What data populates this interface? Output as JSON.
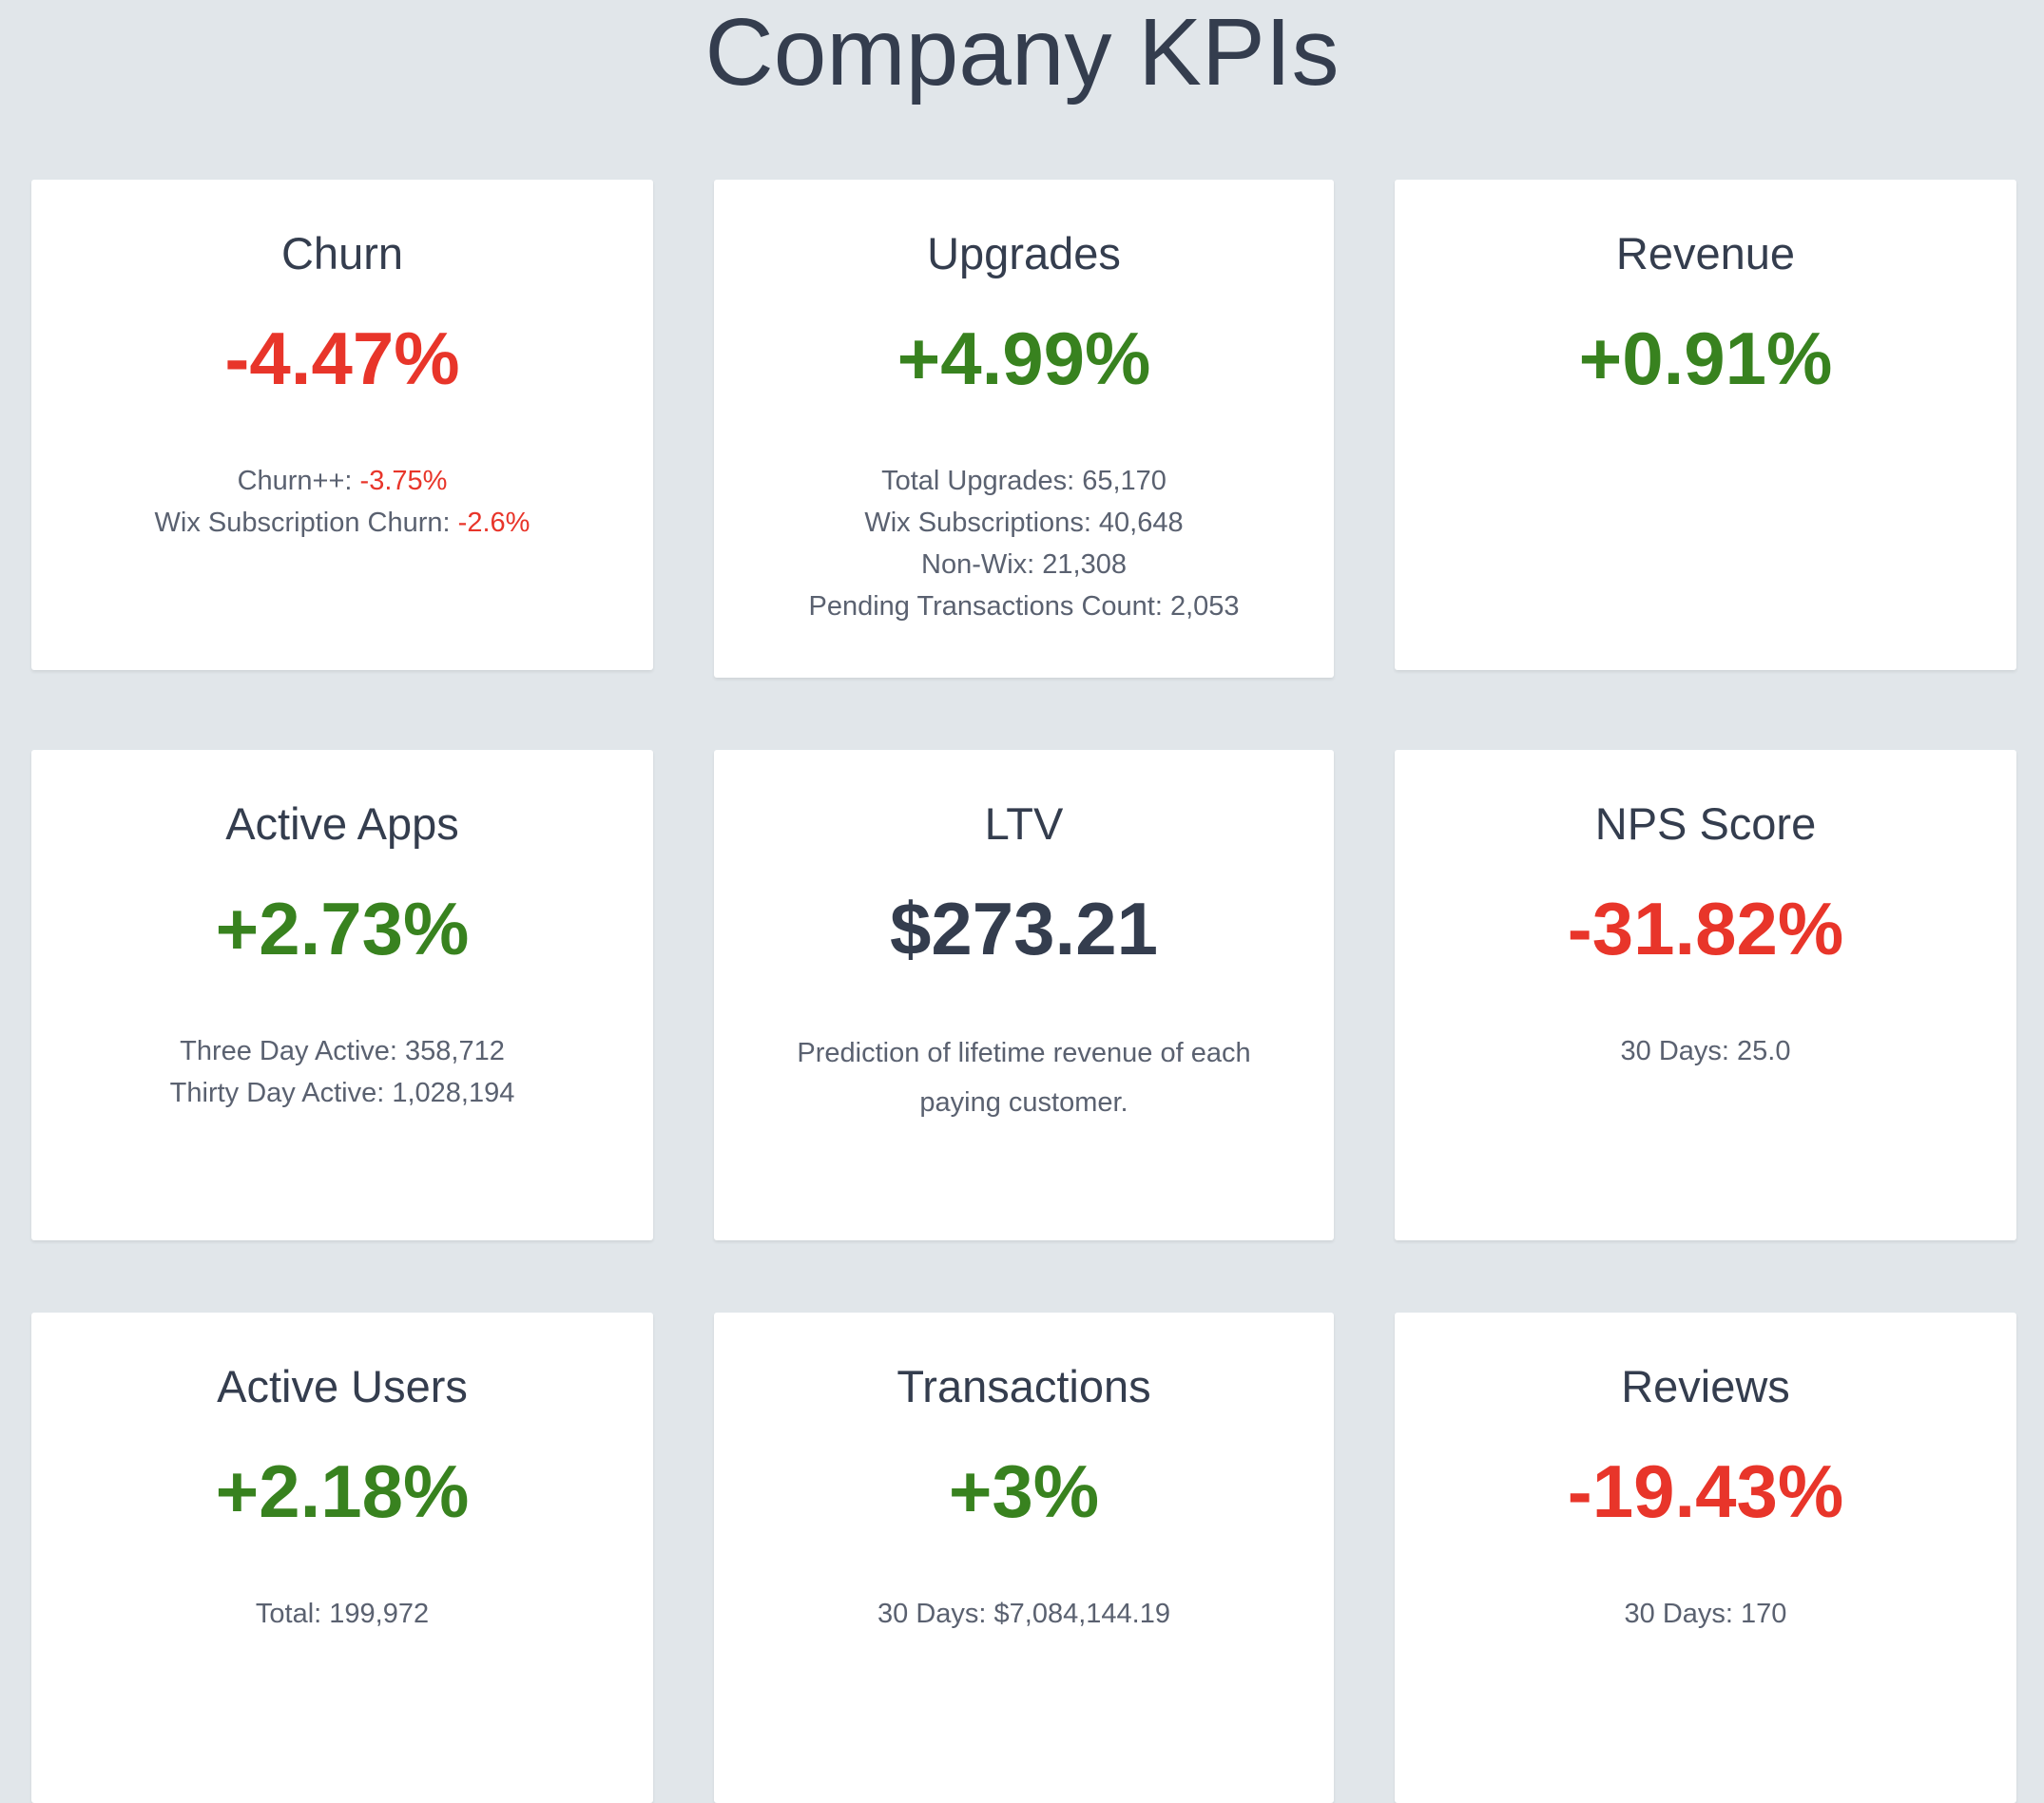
{
  "title": "Company KPIs",
  "colors": {
    "positive": "#38821f",
    "negative": "#e8352a",
    "text": "#343d4e",
    "background": "#e1e6ea"
  },
  "cards": [
    {
      "title": "Churn",
      "value": "-4.47%",
      "trend": "negative",
      "lines": [
        {
          "label": "Churn++: ",
          "value": "-3.75%"
        },
        {
          "label": "Wix Subscription Churn: ",
          "value": "-2.6%"
        }
      ]
    },
    {
      "title": "Upgrades",
      "value": "+4.99%",
      "trend": "positive",
      "lines": [
        "Total Upgrades: 65,170",
        "Wix Subscriptions: 40,648",
        "Non-Wix: 21,308",
        "Pending Transactions Count: 2,053"
      ]
    },
    {
      "title": "Revenue",
      "value": "+0.91%",
      "trend": "positive",
      "lines": []
    },
    {
      "title": "Active Apps",
      "value": "+2.73%",
      "trend": "positive",
      "lines": [
        "Three Day Active: 358,712",
        "Thirty Day Active: 1,028,194"
      ]
    },
    {
      "title": "LTV",
      "value": "$273.21",
      "trend": "neutral",
      "description": "Prediction of lifetime revenue of each paying customer."
    },
    {
      "title": "NPS Score",
      "value": "-31.82%",
      "trend": "negative",
      "lines": [
        "30 Days: 25.0"
      ]
    },
    {
      "title": "Active Users",
      "value": "+2.18%",
      "trend": "positive",
      "lines": [
        "Total: 199,972"
      ]
    },
    {
      "title": "Transactions",
      "value": "+3%",
      "trend": "positive",
      "lines": [
        "30 Days: $7,084,144.19"
      ]
    },
    {
      "title": "Reviews",
      "value": "-19.43%",
      "trend": "negative",
      "lines": [
        "30 Days: 170"
      ]
    }
  ]
}
